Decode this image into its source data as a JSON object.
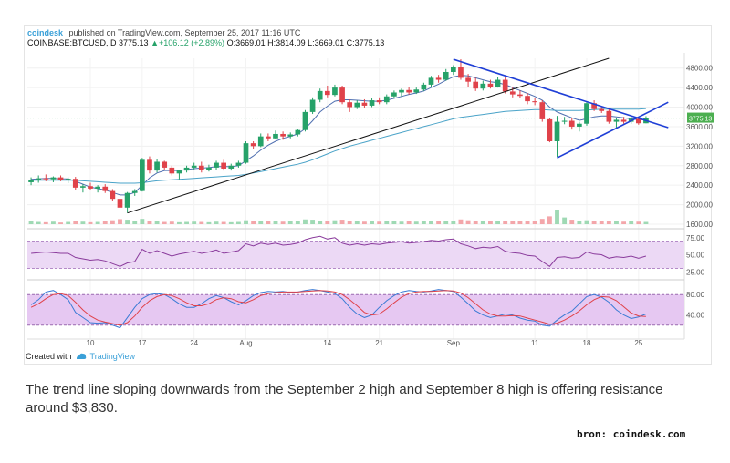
{
  "header": {
    "brand": "coindesk",
    "published": "published on TradingView.com, September 25, 2017 11:16 UTC",
    "symbol": "COINBASE:BTCUSD, D",
    "last": "3775.13",
    "change": "▲+106.12 (+2.89%)",
    "ohlc": "O:3669.01 H:3814.09 L:3669.01 C:3775.13"
  },
  "footer": {
    "created_with": "Created with",
    "tradingview": "TradingView"
  },
  "caption": "The trend line sloping downwards from the September 2 high and September 8 high is offering resistance around $3,830.",
  "credit": "bron: coindesk.com",
  "colors": {
    "up": "#26a269",
    "down": "#e0424a",
    "trend": "#111111",
    "triangle": "#1f3fd6",
    "ma_fast": "#4f6fb0",
    "ma_slow": "#4aa3c8",
    "rsi_band": "#ecd9f5",
    "rsi_line": "#8a3b9c",
    "stoch_k": "#3a7bd5",
    "stoch_d": "#e0424a"
  },
  "chart_data": [
    {
      "type": "candlestick",
      "symbol": "COINBASE:BTCUSD",
      "interval": "D",
      "y_ticks": [
        1600,
        2000,
        2400,
        2800,
        3200,
        3600,
        4000,
        4400,
        4800
      ],
      "last_price_label": "3775.13",
      "ylim": [
        1600,
        5000
      ],
      "x_ticks": [
        "10",
        "17",
        "24",
        "Aug",
        "14",
        "21",
        "Sep",
        "11",
        "18",
        "25"
      ],
      "candles": [
        {
          "o": 2460,
          "h": 2560,
          "l": 2400,
          "c": 2500
        },
        {
          "o": 2500,
          "h": 2600,
          "l": 2450,
          "c": 2540
        },
        {
          "o": 2540,
          "h": 2620,
          "l": 2480,
          "c": 2520
        },
        {
          "o": 2520,
          "h": 2580,
          "l": 2460,
          "c": 2560
        },
        {
          "o": 2560,
          "h": 2600,
          "l": 2480,
          "c": 2510
        },
        {
          "o": 2510,
          "h": 2560,
          "l": 2440,
          "c": 2530
        },
        {
          "o": 2530,
          "h": 2570,
          "l": 2300,
          "c": 2350
        },
        {
          "o": 2350,
          "h": 2420,
          "l": 2250,
          "c": 2380
        },
        {
          "o": 2380,
          "h": 2450,
          "l": 2300,
          "c": 2330
        },
        {
          "o": 2330,
          "h": 2400,
          "l": 2250,
          "c": 2370
        },
        {
          "o": 2370,
          "h": 2420,
          "l": 2240,
          "c": 2280
        },
        {
          "o": 2280,
          "h": 2320,
          "l": 2080,
          "c": 2120
        },
        {
          "o": 2120,
          "h": 2200,
          "l": 1900,
          "c": 1940
        },
        {
          "o": 1940,
          "h": 2260,
          "l": 1830,
          "c": 2240
        },
        {
          "o": 2240,
          "h": 2320,
          "l": 2180,
          "c": 2280
        },
        {
          "o": 2280,
          "h": 2960,
          "l": 2270,
          "c": 2920
        },
        {
          "o": 2920,
          "h": 2990,
          "l": 2640,
          "c": 2700
        },
        {
          "o": 2700,
          "h": 2940,
          "l": 2660,
          "c": 2880
        },
        {
          "o": 2880,
          "h": 2900,
          "l": 2720,
          "c": 2760
        },
        {
          "o": 2760,
          "h": 2800,
          "l": 2600,
          "c": 2640
        },
        {
          "o": 2640,
          "h": 2720,
          "l": 2520,
          "c": 2700
        },
        {
          "o": 2700,
          "h": 2800,
          "l": 2660,
          "c": 2760
        },
        {
          "o": 2760,
          "h": 2860,
          "l": 2720,
          "c": 2800
        },
        {
          "o": 2800,
          "h": 2880,
          "l": 2660,
          "c": 2720
        },
        {
          "o": 2720,
          "h": 2820,
          "l": 2680,
          "c": 2760
        },
        {
          "o": 2760,
          "h": 2900,
          "l": 2720,
          "c": 2860
        },
        {
          "o": 2860,
          "h": 2920,
          "l": 2700,
          "c": 2740
        },
        {
          "o": 2740,
          "h": 2840,
          "l": 2700,
          "c": 2800
        },
        {
          "o": 2800,
          "h": 2900,
          "l": 2760,
          "c": 2860
        },
        {
          "o": 2860,
          "h": 3300,
          "l": 2840,
          "c": 3260
        },
        {
          "o": 3260,
          "h": 3300,
          "l": 3140,
          "c": 3200
        },
        {
          "o": 3200,
          "h": 3460,
          "l": 3180,
          "c": 3400
        },
        {
          "o": 3400,
          "h": 3460,
          "l": 3300,
          "c": 3360
        },
        {
          "o": 3360,
          "h": 3520,
          "l": 3340,
          "c": 3450
        },
        {
          "o": 3450,
          "h": 3500,
          "l": 3330,
          "c": 3400
        },
        {
          "o": 3400,
          "h": 3480,
          "l": 3360,
          "c": 3440
        },
        {
          "o": 3440,
          "h": 3560,
          "l": 3400,
          "c": 3530
        },
        {
          "o": 3530,
          "h": 3940,
          "l": 3500,
          "c": 3900
        },
        {
          "o": 3900,
          "h": 4200,
          "l": 3860,
          "c": 4150
        },
        {
          "o": 4150,
          "h": 4380,
          "l": 4100,
          "c": 4330
        },
        {
          "o": 4330,
          "h": 4440,
          "l": 4200,
          "c": 4250
        },
        {
          "o": 4250,
          "h": 4460,
          "l": 4220,
          "c": 4400
        },
        {
          "o": 4400,
          "h": 4440,
          "l": 4060,
          "c": 4100
        },
        {
          "o": 4100,
          "h": 4160,
          "l": 3900,
          "c": 4000
        },
        {
          "o": 4000,
          "h": 4140,
          "l": 3960,
          "c": 4090
        },
        {
          "o": 4090,
          "h": 4160,
          "l": 3980,
          "c": 4030
        },
        {
          "o": 4030,
          "h": 4180,
          "l": 4000,
          "c": 4140
        },
        {
          "o": 4140,
          "h": 4200,
          "l": 4060,
          "c": 4100
        },
        {
          "o": 4100,
          "h": 4260,
          "l": 4060,
          "c": 4220
        },
        {
          "o": 4220,
          "h": 4340,
          "l": 4180,
          "c": 4300
        },
        {
          "o": 4300,
          "h": 4380,
          "l": 4220,
          "c": 4350
        },
        {
          "o": 4350,
          "h": 4420,
          "l": 4260,
          "c": 4300
        },
        {
          "o": 4300,
          "h": 4400,
          "l": 4270,
          "c": 4360
        },
        {
          "o": 4360,
          "h": 4500,
          "l": 4330,
          "c": 4460
        },
        {
          "o": 4460,
          "h": 4640,
          "l": 4420,
          "c": 4600
        },
        {
          "o": 4600,
          "h": 4660,
          "l": 4500,
          "c": 4560
        },
        {
          "o": 4560,
          "h": 4780,
          "l": 4540,
          "c": 4720
        },
        {
          "o": 4720,
          "h": 4860,
          "l": 4660,
          "c": 4820
        },
        {
          "o": 4820,
          "h": 4980,
          "l": 4560,
          "c": 4600
        },
        {
          "o": 4600,
          "h": 4680,
          "l": 4420,
          "c": 4520
        },
        {
          "o": 4520,
          "h": 4600,
          "l": 4330,
          "c": 4380
        },
        {
          "o": 4380,
          "h": 4540,
          "l": 4340,
          "c": 4480
        },
        {
          "o": 4480,
          "h": 4560,
          "l": 4380,
          "c": 4420
        },
        {
          "o": 4420,
          "h": 4620,
          "l": 4400,
          "c": 4560
        },
        {
          "o": 4560,
          "h": 4640,
          "l": 4280,
          "c": 4320
        },
        {
          "o": 4320,
          "h": 4400,
          "l": 4200,
          "c": 4260
        },
        {
          "o": 4260,
          "h": 4340,
          "l": 4180,
          "c": 4230
        },
        {
          "o": 4230,
          "h": 4290,
          "l": 4060,
          "c": 4120
        },
        {
          "o": 4120,
          "h": 4180,
          "l": 4040,
          "c": 4100
        },
        {
          "o": 4100,
          "h": 4140,
          "l": 3700,
          "c": 3750
        },
        {
          "o": 3750,
          "h": 3780,
          "l": 3280,
          "c": 3300
        },
        {
          "o": 3300,
          "h": 3820,
          "l": 2980,
          "c": 3700
        },
        {
          "o": 3700,
          "h": 3800,
          "l": 3650,
          "c": 3720
        },
        {
          "o": 3720,
          "h": 3780,
          "l": 3540,
          "c": 3600
        },
        {
          "o": 3600,
          "h": 3700,
          "l": 3500,
          "c": 3660
        },
        {
          "o": 3660,
          "h": 4120,
          "l": 3620,
          "c": 4080
        },
        {
          "o": 4080,
          "h": 4140,
          "l": 3920,
          "c": 3960
        },
        {
          "o": 3960,
          "h": 4020,
          "l": 3880,
          "c": 3920
        },
        {
          "o": 3920,
          "h": 3960,
          "l": 3660,
          "c": 3700
        },
        {
          "o": 3700,
          "h": 3780,
          "l": 3560,
          "c": 3740
        },
        {
          "o": 3740,
          "h": 3800,
          "l": 3660,
          "c": 3700
        },
        {
          "o": 3700,
          "h": 3800,
          "l": 3660,
          "c": 3760
        },
        {
          "o": 3760,
          "h": 3800,
          "l": 3640,
          "c": 3669
        },
        {
          "o": 3669,
          "h": 3814,
          "l": 3669,
          "c": 3775
        }
      ],
      "moving_averages": [
        {
          "values": [
            2520,
            2530,
            2540,
            2540,
            2530,
            2530,
            2480,
            2420,
            2360,
            2330,
            2300,
            2250,
            2200,
            2200,
            2250,
            2400,
            2550,
            2650,
            2700,
            2700,
            2700,
            2720,
            2740,
            2750,
            2760,
            2780,
            2780,
            2780,
            2800,
            2900,
            3000,
            3120,
            3220,
            3300,
            3360,
            3400,
            3450,
            3560,
            3720,
            3900,
            4020,
            4120,
            4150,
            4150,
            4140,
            4130,
            4120,
            4120,
            4140,
            4180,
            4220,
            4260,
            4290,
            4330,
            4400,
            4470,
            4550,
            4620,
            4650,
            4640,
            4600,
            4560,
            4520,
            4500,
            4460,
            4400,
            4340,
            4280,
            4220,
            4140,
            4000,
            3900,
            3840,
            3780,
            3730,
            3760,
            3800,
            3820,
            3820,
            3800,
            3780,
            3760,
            3740,
            3740
          ]
        },
        {
          "values": [
            2500,
            2500,
            2500,
            2500,
            2500,
            2500,
            2500,
            2490,
            2480,
            2470,
            2460,
            2450,
            2440,
            2440,
            2440,
            2450,
            2470,
            2490,
            2500,
            2510,
            2520,
            2530,
            2540,
            2550,
            2560,
            2570,
            2580,
            2590,
            2600,
            2620,
            2650,
            2680,
            2710,
            2740,
            2770,
            2800,
            2830,
            2870,
            2920,
            2980,
            3040,
            3100,
            3150,
            3200,
            3240,
            3280,
            3320,
            3360,
            3400,
            3440,
            3480,
            3520,
            3560,
            3600,
            3640,
            3680,
            3720,
            3760,
            3790,
            3810,
            3830,
            3850,
            3870,
            3890,
            3910,
            3920,
            3930,
            3940,
            3950,
            3950,
            3940,
            3930,
            3930,
            3930,
            3930,
            3940,
            3950,
            3960,
            3960,
            3960,
            3960,
            3960,
            3960,
            3970
          ]
        }
      ],
      "trendlines": [
        {
          "role": "uptrend support",
          "from": {
            "i": 13,
            "p": 1830
          },
          "to": {
            "i": 78,
            "p": 5000
          }
        },
        {
          "role": "downtrend resistance",
          "from": {
            "i": 57,
            "p": 4980
          },
          "to": {
            "i": 86,
            "p": 3580
          }
        },
        {
          "role": "triangle lower",
          "from": {
            "i": 71,
            "p": 2960
          },
          "to": {
            "i": 86,
            "p": 4100
          }
        }
      ],
      "volume": [
        60,
        40,
        35,
        45,
        30,
        40,
        55,
        45,
        35,
        40,
        50,
        70,
        90,
        80,
        50,
        95,
        60,
        50,
        40,
        45,
        35,
        40,
        45,
        40,
        35,
        45,
        40,
        35,
        40,
        70,
        55,
        60,
        50,
        55,
        45,
        50,
        55,
        85,
        80,
        65,
        60,
        70,
        80,
        65,
        50,
        45,
        50,
        45,
        50,
        55,
        45,
        50,
        45,
        55,
        60,
        50,
        55,
        65,
        85,
        70,
        60,
        55,
        50,
        55,
        60,
        55,
        50,
        55,
        50,
        95,
        140,
        260,
        120,
        80,
        60,
        70,
        55,
        50,
        60,
        50,
        45,
        50,
        45,
        40
      ]
    },
    {
      "type": "line",
      "name": "RSI",
      "y_ticks": [
        25,
        50,
        75
      ],
      "ylim": [
        20,
        80
      ],
      "band": [
        30,
        70
      ],
      "values": [
        52,
        53,
        54,
        53,
        52,
        52,
        46,
        44,
        42,
        43,
        41,
        37,
        33,
        38,
        40,
        58,
        52,
        56,
        52,
        48,
        51,
        53,
        55,
        52,
        54,
        57,
        52,
        54,
        56,
        66,
        63,
        67,
        65,
        67,
        64,
        65,
        67,
        72,
        75,
        77,
        73,
        75,
        67,
        64,
        66,
        64,
        66,
        65,
        67,
        68,
        69,
        67,
        68,
        69,
        71,
        70,
        72,
        73,
        66,
        63,
        59,
        61,
        60,
        62,
        55,
        53,
        52,
        49,
        48,
        40,
        33,
        46,
        47,
        45,
        46,
        54,
        51,
        50,
        45,
        47,
        46,
        48,
        45,
        48
      ]
    },
    {
      "type": "line",
      "name": "Stochastic",
      "y_ticks": [
        40,
        80
      ],
      "ylim": [
        0,
        100
      ],
      "band": [
        20,
        80
      ],
      "series": [
        {
          "values": [
            60,
            70,
            85,
            88,
            80,
            70,
            45,
            35,
            25,
            24,
            25,
            20,
            15,
            35,
            55,
            72,
            80,
            82,
            80,
            72,
            62,
            55,
            55,
            62,
            72,
            78,
            74,
            66,
            60,
            68,
            78,
            84,
            86,
            85,
            86,
            84,
            85,
            88,
            90,
            88,
            85,
            82,
            72,
            55,
            42,
            35,
            40,
            55,
            68,
            78,
            85,
            88,
            86,
            85,
            87,
            90,
            88,
            86,
            75,
            62,
            48,
            40,
            35,
            38,
            42,
            40,
            34,
            30,
            28,
            20,
            18,
            30,
            40,
            48,
            62,
            76,
            80,
            75,
            65,
            50,
            40,
            33,
            36,
            42
          ]
        },
        {
          "values": [
            55,
            62,
            72,
            80,
            82,
            78,
            65,
            50,
            38,
            30,
            26,
            23,
            20,
            25,
            38,
            55,
            68,
            76,
            80,
            78,
            72,
            64,
            58,
            58,
            62,
            70,
            74,
            72,
            66,
            64,
            70,
            78,
            82,
            84,
            85,
            85,
            85,
            86,
            87,
            88,
            87,
            85,
            80,
            70,
            58,
            45,
            40,
            42,
            52,
            64,
            75,
            82,
            85,
            86,
            86,
            87,
            88,
            87,
            83,
            74,
            62,
            50,
            42,
            38,
            38,
            39,
            38,
            34,
            30,
            26,
            22,
            24,
            30,
            38,
            48,
            60,
            70,
            76,
            75,
            68,
            56,
            44,
            38,
            37
          ]
        }
      ]
    }
  ]
}
